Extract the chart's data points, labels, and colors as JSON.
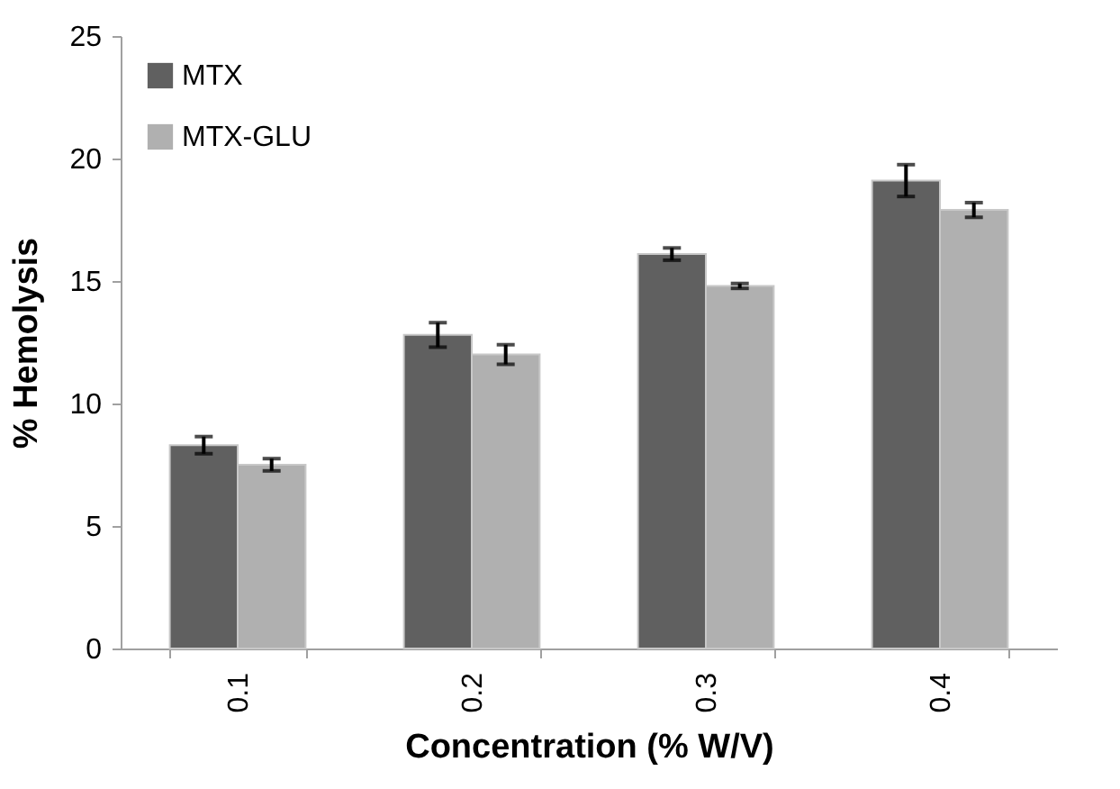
{
  "chart_data": {
    "type": "bar",
    "xlabel": "Concentration (% W/V)",
    "ylabel": "% Hemolysis",
    "categories": [
      "0.1",
      "0.2",
      "0.3",
      "0.4"
    ],
    "series": [
      {
        "name": "MTX",
        "color": "#606060",
        "values": [
          8.3,
          12.8,
          16.1,
          19.1
        ],
        "errors": [
          0.35,
          0.5,
          0.25,
          0.65
        ]
      },
      {
        "name": "MTX-GLU",
        "color": "#b0b0b0",
        "values": [
          7.5,
          12.0,
          14.8,
          17.9
        ],
        "errors": [
          0.25,
          0.4,
          0.1,
          0.3
        ]
      }
    ],
    "ylim": [
      0,
      25
    ],
    "yticks": [
      0,
      5,
      10,
      15,
      20,
      25
    ],
    "grid": false,
    "legend": "top left"
  }
}
